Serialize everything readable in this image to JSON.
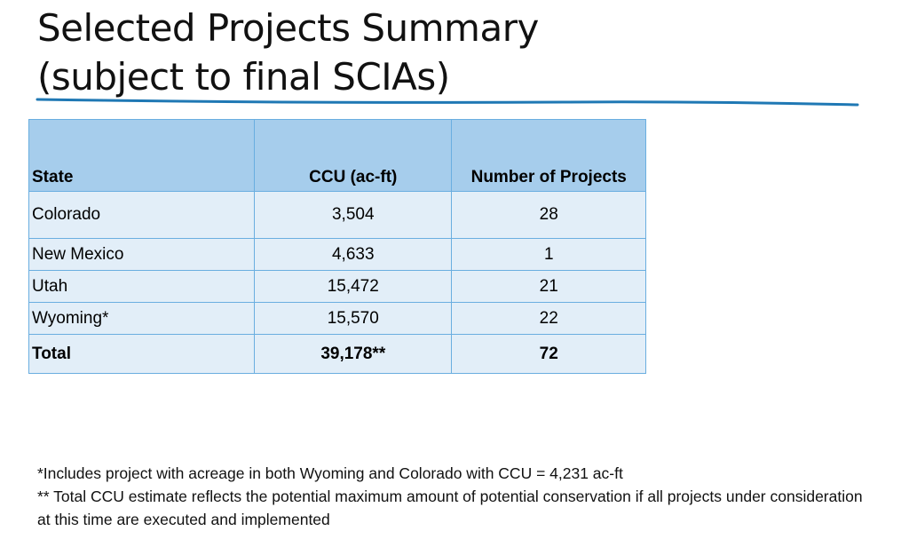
{
  "slide": {
    "title_line1": "Selected Projects Summary",
    "title_line2": "(subject to final SCIAs)",
    "accent_color": "#1f78b4"
  },
  "table": {
    "headers": {
      "state": "State",
      "ccu": "CCU (ac-ft)",
      "projects": "Number of Projects"
    },
    "rows": [
      {
        "state": "Colorado",
        "ccu": "3,504",
        "projects": "28"
      },
      {
        "state": "New Mexico",
        "ccu": "4,633",
        "projects": "1"
      },
      {
        "state": "Utah",
        "ccu": "15,472",
        "projects": "21"
      },
      {
        "state": "Wyoming*",
        "ccu": "15,570",
        "projects": "22"
      }
    ],
    "total": {
      "state": "Total",
      "ccu": "39,178**",
      "projects": "72"
    }
  },
  "footnotes": {
    "note1": "*Includes project with acreage in both Wyoming and Colorado with CCU = 4,231 ac-ft",
    "note2": "** Total CCU estimate reflects the potential maximum amount of potential conservation if all projects under consideration at this time are executed and implemented"
  }
}
